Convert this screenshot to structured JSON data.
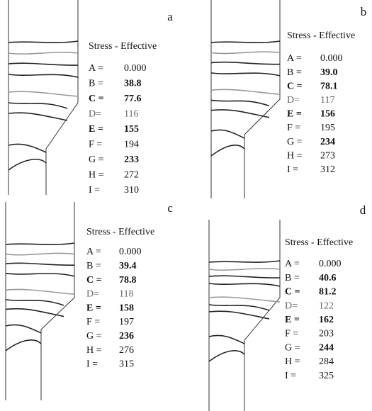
{
  "panels": [
    {
      "label": "a",
      "legend_title": "Stress - Effective",
      "entries": [
        {
          "key": "A =",
          "value": "0.000"
        },
        {
          "key": "B =",
          "value": "38.8"
        },
        {
          "key": "C =",
          "value": "77.6"
        },
        {
          "key": "D=",
          "value": "116"
        },
        {
          "key": "E =",
          "value": "155"
        },
        {
          "key": "F =",
          "value": "194"
        },
        {
          "key": "G =",
          "value": "233"
        },
        {
          "key": "H =",
          "value": "272"
        },
        {
          "key": "I =",
          "value": "310"
        }
      ]
    },
    {
      "label": "b",
      "legend_title": "Stress - Effective",
      "entries": [
        {
          "key": "A =",
          "value": "0.000"
        },
        {
          "key": "B =",
          "value": "39.0"
        },
        {
          "key": "C =",
          "value": "78.1"
        },
        {
          "key": "D=",
          "value": "117"
        },
        {
          "key": "E =",
          "value": "156"
        },
        {
          "key": "F =",
          "value": "195"
        },
        {
          "key": "G =",
          "value": "234"
        },
        {
          "key": "H =",
          "value": "273"
        },
        {
          "key": "I =",
          "value": "312"
        }
      ]
    },
    {
      "label": "c",
      "legend_title": "Stress - Effective",
      "entries": [
        {
          "key": "A =",
          "value": "0.000"
        },
        {
          "key": "B =",
          "value": "39.4"
        },
        {
          "key": "C =",
          "value": "78.8"
        },
        {
          "key": "D=",
          "value": "118"
        },
        {
          "key": "E =",
          "value": "158"
        },
        {
          "key": "F =",
          "value": "197"
        },
        {
          "key": "G =",
          "value": "236"
        },
        {
          "key": "H =",
          "value": "276"
        },
        {
          "key": "I =",
          "value": "315"
        }
      ]
    },
    {
      "label": "d",
      "legend_title": "Stress - Effective",
      "entries": [
        {
          "key": "A =",
          "value": "0.000"
        },
        {
          "key": "B =",
          "value": "40.6"
        },
        {
          "key": "C =",
          "value": "81.2"
        },
        {
          "key": "D=",
          "value": "122"
        },
        {
          "key": "E =",
          "value": "162"
        },
        {
          "key": "F =",
          "value": "203"
        },
        {
          "key": "G =",
          "value": "244"
        },
        {
          "key": "H =",
          "value": "284"
        },
        {
          "key": "I =",
          "value": "325"
        }
      ]
    }
  ]
}
